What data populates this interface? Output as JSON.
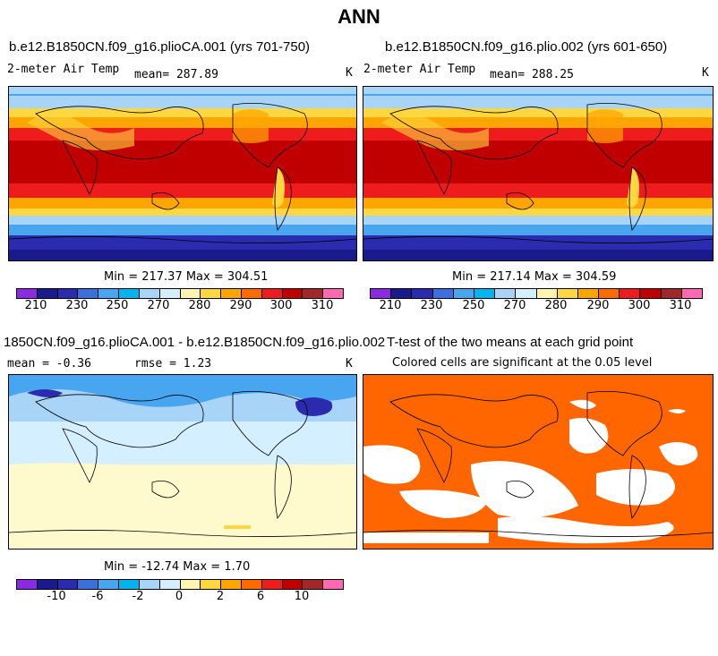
{
  "title": "ANN",
  "chart_data": [
    {
      "type": "heatmap",
      "title": "b.e12.B1850CN.f09_g16.plioCA.001 (yrs 701-750)",
      "variable": "2-meter Air Temp",
      "mean_label": "mean= 287.89",
      "units": "K",
      "stats": "Min = 217.37 Max = 304.51",
      "colorbar_ticks": [
        "210",
        "230",
        "250",
        "270",
        "280",
        "290",
        "300",
        "310"
      ],
      "colormap": [
        "#8a2be2",
        "#1a1a8c",
        "#2b2bb0",
        "#3a6fdc",
        "#48a5f0",
        "#00b4ef",
        "#a8d4f7",
        "#d4efff",
        "#fff5b0",
        "#ffd740",
        "#ffa500",
        "#ff6a00",
        "#ee1c1c",
        "#c00000",
        "#a02828",
        "#ff69b4"
      ]
    },
    {
      "type": "heatmap",
      "title": "b.e12.B1850CN.f09_g16.plio.002 (yrs 601-650)",
      "variable": "2-meter Air Temp",
      "mean_label": "mean= 288.25",
      "units": "K",
      "stats": "Min = 217.14 Max = 304.59",
      "colorbar_ticks": [
        "210",
        "230",
        "250",
        "270",
        "280",
        "290",
        "300",
        "310"
      ]
    },
    {
      "type": "heatmap",
      "title": "1850CN.f09_g16.plioCA.001 - b.e12.B1850CN.f09_g16.plio.002",
      "mean_label": "mean =  -0.36",
      "rmse_label": "rmse =   1.23",
      "units": "K",
      "stats": "Min = -12.74 Max =   1.70",
      "colorbar_ticks": [
        "-10",
        "-6",
        "-2",
        "0",
        "2",
        "6",
        "10"
      ]
    },
    {
      "type": "heatmap",
      "title": "T-test of the two means at each grid point",
      "subtitle": "Colored cells are significant at the 0.05 level",
      "significant_color": "#ff6600"
    }
  ]
}
